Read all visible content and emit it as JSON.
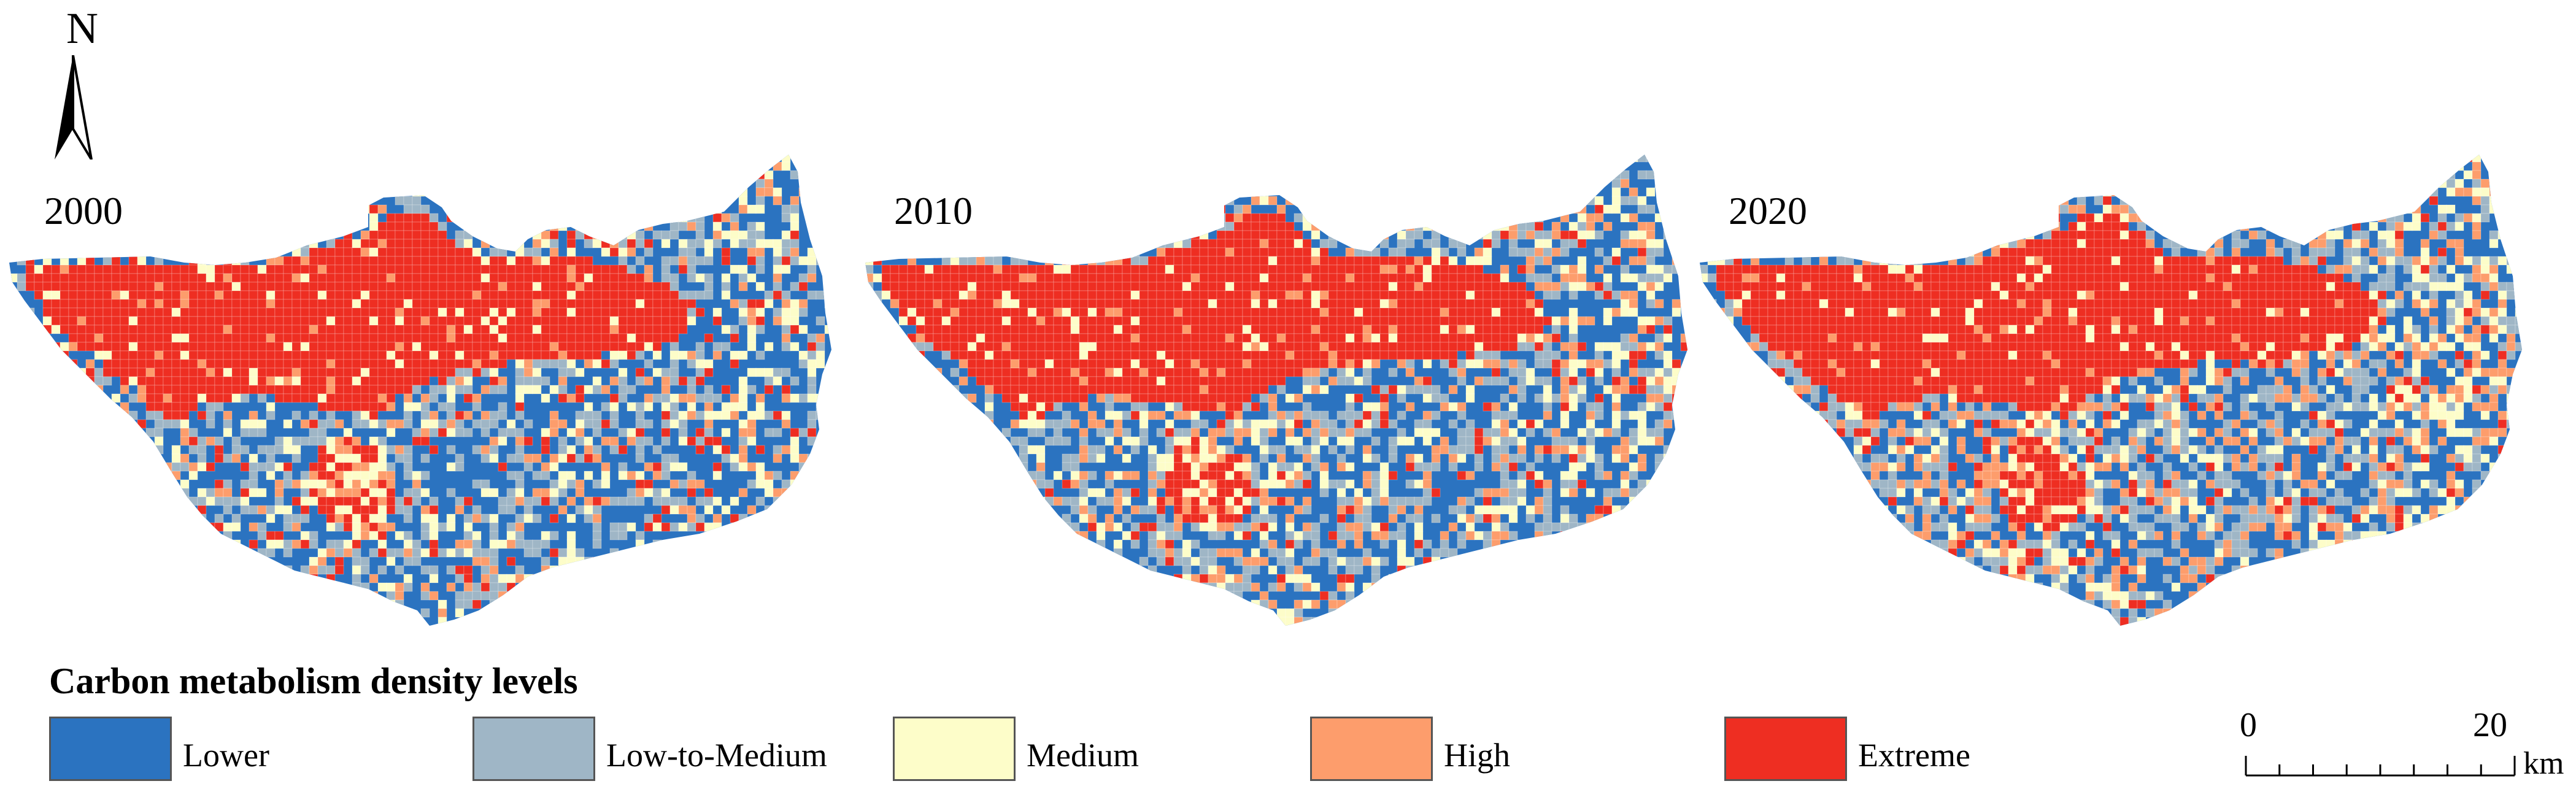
{
  "compass": {
    "letter": "N",
    "icon": "north-arrow-icon"
  },
  "panels": [
    {
      "year": "2000",
      "seed": 11
    },
    {
      "year": "2010",
      "seed": 23
    },
    {
      "year": "2020",
      "seed": 37
    }
  ],
  "legend": {
    "title": "Carbon metabolism density levels",
    "items": [
      {
        "label": "Lower",
        "color": "#2b73c0"
      },
      {
        "label": "Low-to-Medium",
        "color": "#9fb6c6"
      },
      {
        "label": "Medium",
        "color": "#fdfdc9"
      },
      {
        "label": "High",
        "color": "#fd9d6c"
      },
      {
        "label": "Extreme",
        "color": "#ee2e22"
      }
    ]
  },
  "scale_bar": {
    "min_label": "0",
    "max_label": "20",
    "unit": "km"
  }
}
